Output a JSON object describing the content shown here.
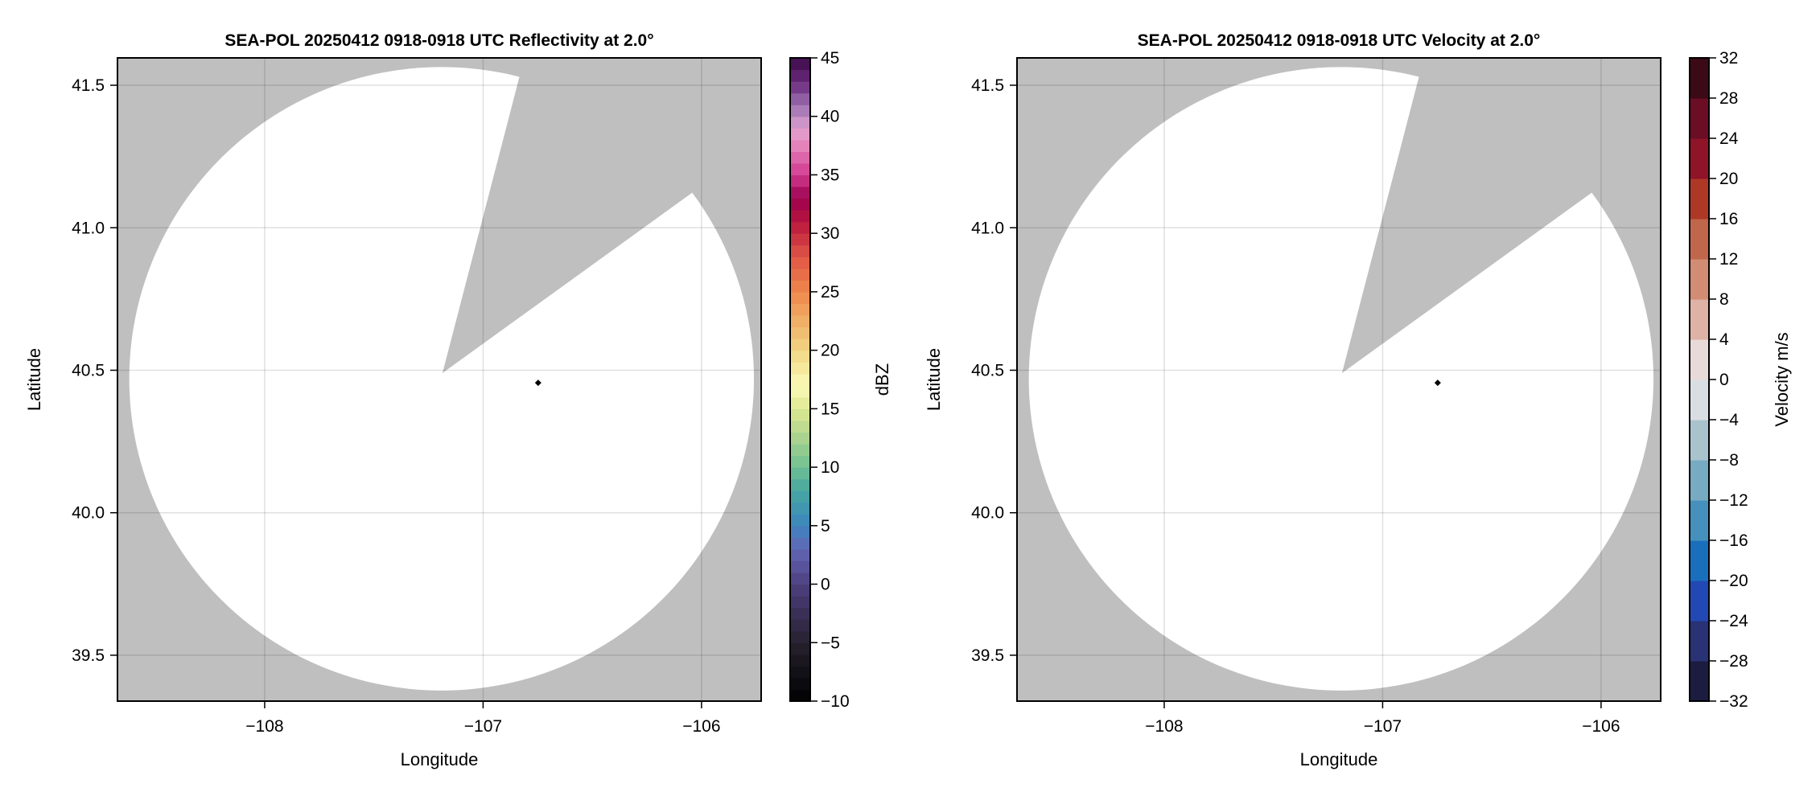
{
  "chart_data": [
    {
      "type": "heatmap",
      "title": "SEA-POL 20250412 0918-0918 UTC Reflectivity at 2.0°",
      "xlabel": "Longitude",
      "ylabel": "Latitude",
      "xlim": [
        -108.674,
        -105.727
      ],
      "ylim": [
        39.339,
        41.596
      ],
      "xticks": [
        -108,
        -107,
        -106
      ],
      "xtick_labels": [
        "−108",
        "−107",
        "−106"
      ],
      "yticks": [
        39.5,
        40.0,
        40.5,
        41.0,
        41.5
      ],
      "ytick_labels": [
        "39.5",
        "40.0",
        "40.5",
        "41.0",
        "41.5"
      ],
      "grid": true,
      "background_color": "#bfbfbf",
      "data_region": {
        "center": [
          -107.19,
          40.47
        ],
        "radius_deg": [
          1.43,
          1.094
        ],
        "fill": "#ffffff"
      },
      "gap_wedge": [
        [
          -107.186,
          40.49
        ],
        [
          -106.836,
          41.523
        ],
        [
          -106.05,
          41.119
        ]
      ],
      "marker": {
        "lon": -106.748,
        "lat": 40.456,
        "color": "#000000"
      },
      "colorbar": {
        "label": "dBZ",
        "range": [
          -10,
          45
        ],
        "step": 1,
        "ticks": [
          -10,
          -5,
          0,
          5,
          10,
          15,
          20,
          25,
          30,
          35,
          40,
          45
        ],
        "tick_labels": [
          "−10",
          "−5",
          "0",
          "5",
          "10",
          "15",
          "20",
          "25",
          "30",
          "35",
          "40",
          "45"
        ],
        "colormap_stops": [
          [
            -10,
            "#000000"
          ],
          [
            -5,
            "#26212f"
          ],
          [
            0,
            "#4d3f7f"
          ],
          [
            3,
            "#6366b4"
          ],
          [
            5,
            "#3d85bf"
          ],
          [
            8,
            "#45a6a0"
          ],
          [
            10,
            "#6fbf92"
          ],
          [
            13,
            "#b5d78e"
          ],
          [
            15,
            "#dde892"
          ],
          [
            17,
            "#fbfab8"
          ],
          [
            20,
            "#f1d682"
          ],
          [
            25,
            "#ef874c"
          ],
          [
            28,
            "#e05546"
          ],
          [
            31,
            "#b8173e"
          ],
          [
            33,
            "#9c004f"
          ],
          [
            35,
            "#d13a8f"
          ],
          [
            38,
            "#e791c3"
          ],
          [
            39,
            "#dca1d0"
          ],
          [
            41,
            "#9b6fb0"
          ],
          [
            43,
            "#6a2a7a"
          ],
          [
            45,
            "#3d0a4a"
          ]
        ]
      }
    },
    {
      "type": "heatmap",
      "title": "SEA-POL 20250412 0918-0918 UTC Velocity at 2.0°",
      "xlabel": "Longitude",
      "ylabel": "Latitude",
      "xlim": [
        -108.674,
        -105.727
      ],
      "ylim": [
        39.339,
        41.596
      ],
      "xticks": [
        -108,
        -107,
        -106
      ],
      "xtick_labels": [
        "−108",
        "−107",
        "−106"
      ],
      "yticks": [
        39.5,
        40.0,
        40.5,
        41.0,
        41.5
      ],
      "ytick_labels": [
        "39.5",
        "40.0",
        "40.5",
        "41.0",
        "41.5"
      ],
      "grid": true,
      "background_color": "#bfbfbf",
      "data_region": {
        "center": [
          -107.19,
          40.47
        ],
        "radius_deg": [
          1.43,
          1.094
        ],
        "fill": "#ffffff"
      },
      "gap_wedge": [
        [
          -107.186,
          40.49
        ],
        [
          -106.836,
          41.523
        ],
        [
          -106.05,
          41.119
        ]
      ],
      "marker": {
        "lon": -106.748,
        "lat": 40.456,
        "color": "#000000"
      },
      "colorbar": {
        "label": "Velocity m/s",
        "range": [
          -32,
          32
        ],
        "step": 4,
        "ticks": [
          -32,
          -28,
          -24,
          -20,
          -16,
          -12,
          -8,
          -4,
          0,
          4,
          8,
          12,
          16,
          20,
          24,
          28,
          32
        ],
        "tick_labels": [
          "−32",
          "−28",
          "−24",
          "−20",
          "−16",
          "−12",
          "−8",
          "−4",
          "0",
          "4",
          "8",
          "12",
          "16",
          "20",
          "24",
          "28",
          "32"
        ],
        "bin_colors": [
          "#1b1c3f",
          "#283275",
          "#2249b3",
          "#1a6fbc",
          "#4690bd",
          "#77abc2",
          "#a9c3cd",
          "#d9dee2",
          "#e8dad8",
          "#dfb2a6",
          "#d18c73",
          "#c0664a",
          "#ae3826",
          "#8f1428",
          "#6b0d25",
          "#3c0a16"
        ]
      }
    }
  ]
}
